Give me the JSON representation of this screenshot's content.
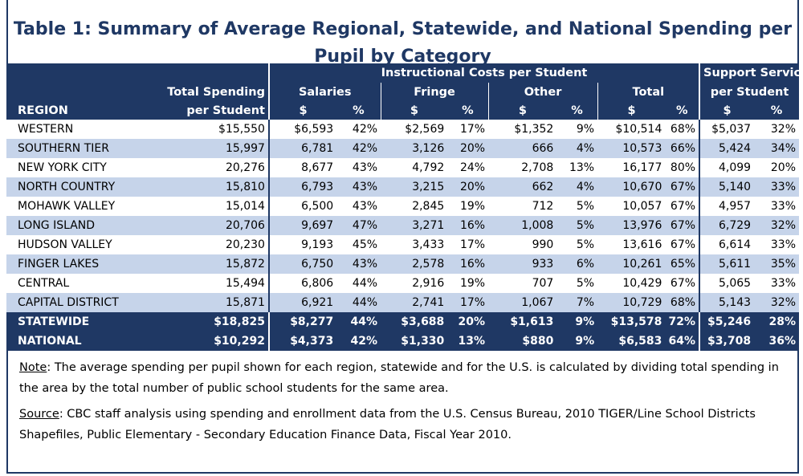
{
  "title": "Table 1: Summary of Average Regional, Statewide, and National Spending per Pupil by Category",
  "header": {
    "region": "REGION",
    "total_spending_1": "Total Spending",
    "total_spending_2": "per Student",
    "instructional": "Instructional Costs per Student",
    "salaries": "Salaries",
    "fringe": "Fringe",
    "other": "Other",
    "total": "Total",
    "support_1": "Support Services",
    "support_2": "per Student",
    "dollar": "$",
    "pct": "%"
  },
  "rows": [
    {
      "region": "WESTERN",
      "total": "$15,550",
      "sal": "$6,593",
      "sal_p": "42%",
      "fr": "$2,569",
      "fr_p": "17%",
      "oth": "$1,352",
      "oth_p": "9%",
      "tot": "$10,514",
      "tot_p": "68%",
      "sup": "$5,037",
      "sup_p": "32%"
    },
    {
      "region": "SOUTHERN TIER",
      "total": "15,997",
      "sal": "6,781",
      "sal_p": "42%",
      "fr": "3,126",
      "fr_p": "20%",
      "oth": "666",
      "oth_p": "4%",
      "tot": "10,573",
      "tot_p": "66%",
      "sup": "5,424",
      "sup_p": "34%"
    },
    {
      "region": "NEW YORK CITY",
      "total": "20,276",
      "sal": "8,677",
      "sal_p": "43%",
      "fr": "4,792",
      "fr_p": "24%",
      "oth": "2,708",
      "oth_p": "13%",
      "tot": "16,177",
      "tot_p": "80%",
      "sup": "4,099",
      "sup_p": "20%"
    },
    {
      "region": "NORTH COUNTRY",
      "total": "15,810",
      "sal": "6,793",
      "sal_p": "43%",
      "fr": "3,215",
      "fr_p": "20%",
      "oth": "662",
      "oth_p": "4%",
      "tot": "10,670",
      "tot_p": "67%",
      "sup": "5,140",
      "sup_p": "33%"
    },
    {
      "region": "MOHAWK VALLEY",
      "total": "15,014",
      "sal": "6,500",
      "sal_p": "43%",
      "fr": "2,845",
      "fr_p": "19%",
      "oth": "712",
      "oth_p": "5%",
      "tot": "10,057",
      "tot_p": "67%",
      "sup": "4,957",
      "sup_p": "33%"
    },
    {
      "region": "LONG ISLAND",
      "total": "20,706",
      "sal": "9,697",
      "sal_p": "47%",
      "fr": "3,271",
      "fr_p": "16%",
      "oth": "1,008",
      "oth_p": "5%",
      "tot": "13,976",
      "tot_p": "67%",
      "sup": "6,729",
      "sup_p": "32%"
    },
    {
      "region": "HUDSON VALLEY",
      "total": "20,230",
      "sal": "9,193",
      "sal_p": "45%",
      "fr": "3,433",
      "fr_p": "17%",
      "oth": "990",
      "oth_p": "5%",
      "tot": "13,616",
      "tot_p": "67%",
      "sup": "6,614",
      "sup_p": "33%"
    },
    {
      "region": "FINGER LAKES",
      "total": "15,872",
      "sal": "6,750",
      "sal_p": "43%",
      "fr": "2,578",
      "fr_p": "16%",
      "oth": "933",
      "oth_p": "6%",
      "tot": "10,261",
      "tot_p": "65%",
      "sup": "5,611",
      "sup_p": "35%"
    },
    {
      "region": "CENTRAL",
      "total": "15,494",
      "sal": "6,806",
      "sal_p": "44%",
      "fr": "2,916",
      "fr_p": "19%",
      "oth": "707",
      "oth_p": "5%",
      "tot": "10,429",
      "tot_p": "67%",
      "sup": "5,065",
      "sup_p": "33%"
    },
    {
      "region": "CAPITAL DISTRICT",
      "total": "15,871",
      "sal": "6,921",
      "sal_p": "44%",
      "fr": "2,741",
      "fr_p": "17%",
      "oth": "1,067",
      "oth_p": "7%",
      "tot": "10,729",
      "tot_p": "68%",
      "sup": "5,143",
      "sup_p": "32%"
    }
  ],
  "totals": [
    {
      "region": "STATEWIDE",
      "total": "$18,825",
      "sal": "$8,277",
      "sal_p": "44%",
      "fr": "$3,688",
      "fr_p": "20%",
      "oth": "$1,613",
      "oth_p": "9%",
      "tot": "$13,578",
      "tot_p": "72%",
      "sup": "$5,246",
      "sup_p": "28%"
    },
    {
      "region": "NATIONAL",
      "total": "$10,292",
      "sal": "$4,373",
      "sal_p": "42%",
      "fr": "$1,330",
      "fr_p": "13%",
      "oth": "$880",
      "oth_p": "9%",
      "tot": "$6,583",
      "tot_p": "64%",
      "sup": "$3,708",
      "sup_p": "36%"
    }
  ],
  "note_label": "Note",
  "note_text": ": The average spending per pupil shown for each region, statewide and for the U.S. is calculated by dividing total spending in the area by the total number of public school students for the same area.",
  "source_label": "Source",
  "source_text": ": CBC staff analysis using spending and enrollment data from the U.S. Census Bureau, 2010 TIGER/Line School Districts Shapefiles, Public Elementary - Secondary Education Finance Data, Fiscal Year 2010.",
  "colors": {
    "navy": "#1f3864",
    "band": "#c6d4ea"
  }
}
